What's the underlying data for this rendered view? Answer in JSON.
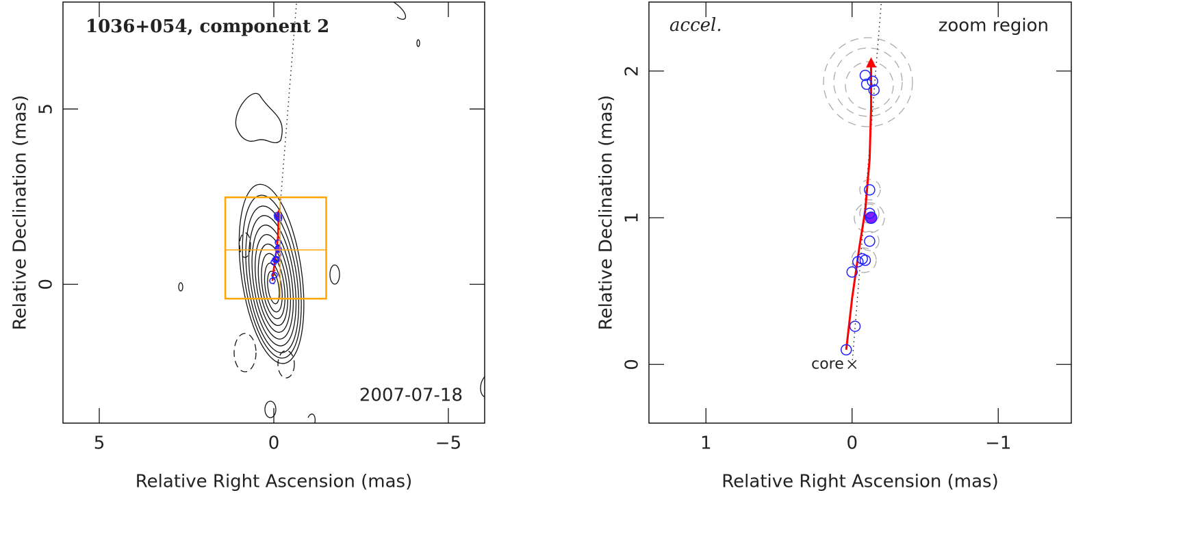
{
  "chart_data": [
    {
      "type": "contour_map",
      "title": "1036+054, component 2",
      "annotation": "2007-07-18",
      "xlabel": "Relative Right Ascension (mas)",
      "ylabel": "Relative Declination (mas)",
      "xlim": [
        6.04,
        -6.04
      ],
      "ylim": [
        -3.96,
        8.05
      ],
      "xticks": [
        5,
        0,
        {
          "value": -5,
          "label": "−5"
        }
      ],
      "yticks": [
        0,
        5
      ],
      "zoom_box": {
        "x": [
          1.39,
          -1.5
        ],
        "y": [
          -0.41,
          2.48
        ],
        "cross": [
          -0.18,
          0.98
        ],
        "color": "#ffa500"
      }
    },
    {
      "type": "scatter",
      "title": "accel.",
      "annotation": "zoom region",
      "core_label": "core",
      "xlabel": "Relative Right Ascension (mas)",
      "ylabel": "Relative Declination (mas)",
      "xlim": [
        1.39,
        -1.5
      ],
      "ylim": [
        -0.4,
        2.47
      ],
      "xticks": [
        1,
        0,
        {
          "value": -1,
          "label": "−1"
        }
      ],
      "yticks": [
        0,
        1,
        2
      ],
      "components": {
        "color": "#2020ff",
        "highlight_index": 7,
        "x": [
          0.04,
          -0.02,
          0.0,
          -0.04,
          -0.07,
          -0.09,
          -0.12,
          -0.13,
          -0.12,
          -0.12,
          -0.09,
          -0.1,
          -0.14,
          -0.15
        ],
        "y": [
          0.1,
          0.26,
          0.63,
          0.7,
          0.72,
          0.71,
          0.84,
          1.0,
          1.03,
          1.19,
          1.97,
          1.91,
          1.93,
          1.87
        ]
      },
      "track": {
        "color": "#ff0000",
        "x": [
          0.04,
          0.0,
          -0.05,
          -0.09,
          -0.12,
          -0.13,
          -0.13
        ],
        "y": [
          0.1,
          0.45,
          0.8,
          1.05,
          1.4,
          1.75,
          2.08
        ]
      },
      "jet_axis": {
        "x": [
          0,
          -0.2
        ],
        "y": [
          0,
          2.47
        ]
      }
    }
  ]
}
